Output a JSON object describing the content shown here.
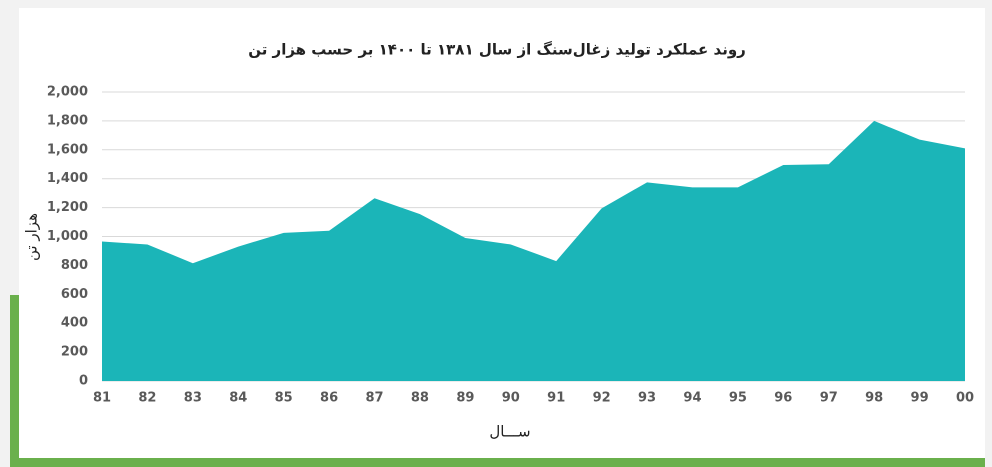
{
  "chart_data": {
    "type": "area",
    "title": "روند عملکرد تولید زغال‌سنگ از سال ۱۳۸۱ تا ۱۴۰۰ بر حسب هزار تن",
    "x_label": "ســـال",
    "y_label": "هزار تن",
    "categories": [
      "81",
      "82",
      "83",
      "84",
      "85",
      "86",
      "87",
      "88",
      "89",
      "90",
      "91",
      "92",
      "93",
      "94",
      "95",
      "96",
      "97",
      "98",
      "99",
      "00"
    ],
    "values": [
      965,
      945,
      815,
      930,
      1025,
      1040,
      1265,
      1155,
      990,
      945,
      830,
      1195,
      1375,
      1340,
      1340,
      1495,
      1500,
      1800,
      1670,
      1610
    ],
    "color": "#1bb5b8",
    "ylim": [
      0,
      2000
    ],
    "yticks": [
      0,
      200,
      400,
      600,
      800,
      {
        "value": 1000,
        "label": "1,000"
      },
      {
        "value": 1200,
        "label": "1,200"
      },
      {
        "value": 1400,
        "label": "1,400"
      },
      {
        "value": 1600,
        "label": "1,600"
      },
      {
        "value": 1800,
        "label": "1,800"
      },
      {
        "value": 2000,
        "label": "2,000"
      }
    ],
    "grid": true
  }
}
